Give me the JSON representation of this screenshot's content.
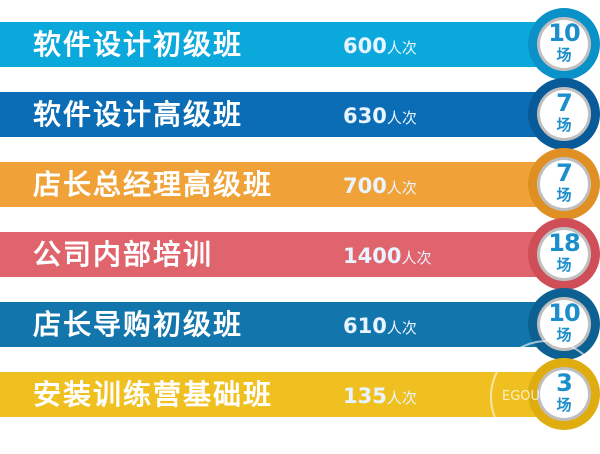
{
  "rows": [
    {
      "title": "软件设计初级班",
      "count": "600",
      "count_unit": "人次",
      "sessions": "10",
      "sessions_unit": "场",
      "color": "#0ba8dc",
      "ring": "#0a92c8"
    },
    {
      "title": "软件设计高级班",
      "count": "630",
      "count_unit": "人次",
      "sessions": "7",
      "sessions_unit": "场",
      "color": "#0a6db5",
      "ring": "#085a98"
    },
    {
      "title": "店长总经理高级班",
      "count": "700",
      "count_unit": "人次",
      "sessions": "7",
      "sessions_unit": "场",
      "color": "#f0a238",
      "ring": "#e08f22"
    },
    {
      "title": "公司内部培训",
      "count": "1400",
      "count_unit": "人次",
      "sessions": "18",
      "sessions_unit": "场",
      "color": "#e0646c",
      "ring": "#cf4e57"
    },
    {
      "title": "店长导购初级班",
      "count": "610",
      "count_unit": "人次",
      "sessions": "10",
      "sessions_unit": "场",
      "color": "#1275ab",
      "ring": "#0d6192"
    },
    {
      "title": "安装训练营基础班",
      "count": "135",
      "count_unit": "人次",
      "sessions": "3",
      "sessions_unit": "场",
      "color": "#f0c020",
      "ring": "#e0ad10"
    }
  ],
  "watermark": "EGOU"
}
